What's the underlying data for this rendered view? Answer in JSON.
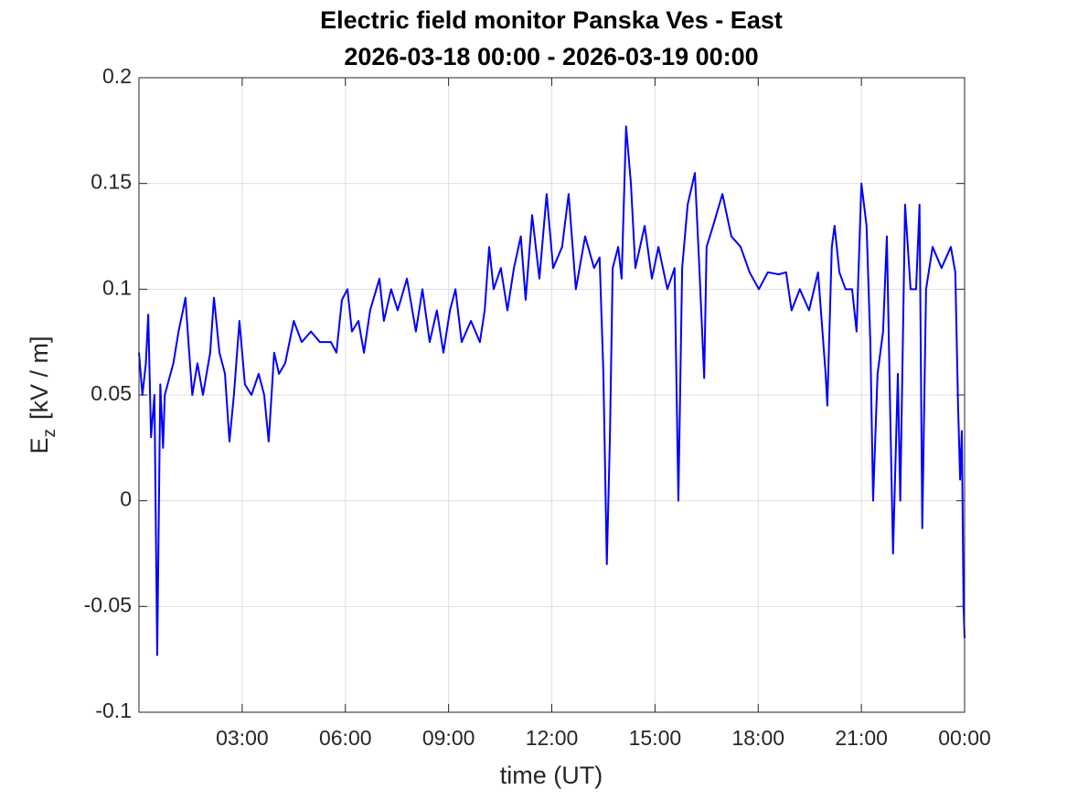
{
  "chart_data": {
    "type": "line",
    "title": "Electric field monitor Panska Ves - East",
    "subtitle": "2026-03-18 00:00 - 2026-03-19 00:00",
    "xlabel": "time (UT)",
    "ylabel": {
      "main": "E",
      "sub": "z",
      "unit": "[kV / m]"
    },
    "xlim": [
      0,
      24
    ],
    "xticks": [
      {
        "value": 3,
        "label": "03:00"
      },
      {
        "value": 6,
        "label": "06:00"
      },
      {
        "value": 9,
        "label": "09:00"
      },
      {
        "value": 12,
        "label": "12:00"
      },
      {
        "value": 15,
        "label": "15:00"
      },
      {
        "value": 18,
        "label": "18:00"
      },
      {
        "value": 21,
        "label": "21:00"
      },
      {
        "value": 24,
        "label": "00:00"
      }
    ],
    "ylim": [
      -0.1,
      0.2
    ],
    "yticks": [
      -0.1,
      -0.05,
      0,
      0.05,
      0.1,
      0.15,
      0.2
    ],
    "grid": true,
    "series": [
      {
        "name": "Ez",
        "color": "#0000ff",
        "x": [
          0.0,
          0.1,
          0.2,
          0.27,
          0.35,
          0.45,
          0.53,
          0.62,
          0.7,
          0.75,
          1.0,
          1.15,
          1.28,
          1.35,
          1.46,
          1.55,
          1.7,
          1.86,
          2.07,
          2.18,
          2.34,
          2.5,
          2.63,
          2.76,
          2.92,
          3.08,
          3.27,
          3.48,
          3.64,
          3.77,
          3.93,
          4.07,
          4.25,
          4.5,
          4.73,
          5.0,
          5.26,
          5.58,
          5.74,
          5.9,
          6.06,
          6.19,
          6.38,
          6.54,
          6.72,
          6.99,
          7.12,
          7.33,
          7.52,
          7.79,
          8.05,
          8.24,
          8.45,
          8.66,
          8.85,
          9.04,
          9.2,
          9.38,
          9.65,
          9.91,
          10.05,
          10.18,
          10.31,
          10.52,
          10.71,
          10.9,
          11.1,
          11.24,
          11.43,
          11.64,
          11.85,
          12.04,
          12.3,
          12.49,
          12.7,
          12.97,
          13.23,
          13.39,
          13.5,
          13.6,
          13.69,
          13.77,
          13.93,
          14.03,
          14.16,
          14.3,
          14.43,
          14.7,
          14.91,
          15.1,
          15.36,
          15.57,
          15.68,
          15.79,
          15.95,
          16.16,
          16.29,
          16.43,
          16.5,
          16.69,
          16.96,
          17.22,
          17.49,
          17.75,
          18.02,
          18.28,
          18.6,
          18.81,
          18.97,
          19.21,
          19.48,
          19.74,
          19.96,
          20.01,
          20.14,
          20.22,
          20.36,
          20.54,
          20.73,
          20.86,
          21.0,
          21.15,
          21.26,
          21.34,
          21.47,
          21.63,
          21.74,
          21.84,
          21.92,
          22.06,
          22.13,
          22.27,
          22.43,
          22.59,
          22.69,
          22.77,
          22.88,
          23.07,
          23.33,
          23.6,
          23.73,
          23.81,
          23.87,
          23.92,
          23.97,
          24.0
        ],
        "values": [
          0.07,
          0.05,
          0.065,
          0.088,
          0.03,
          0.05,
          -0.073,
          0.055,
          0.025,
          0.05,
          0.065,
          0.08,
          0.09,
          0.096,
          0.07,
          0.05,
          0.065,
          0.05,
          0.07,
          0.096,
          0.07,
          0.06,
          0.028,
          0.05,
          0.085,
          0.055,
          0.05,
          0.06,
          0.05,
          0.028,
          0.07,
          0.06,
          0.065,
          0.085,
          0.075,
          0.08,
          0.075,
          0.075,
          0.07,
          0.095,
          0.1,
          0.08,
          0.085,
          0.07,
          0.09,
          0.105,
          0.085,
          0.1,
          0.09,
          0.105,
          0.08,
          0.1,
          0.075,
          0.09,
          0.07,
          0.09,
          0.1,
          0.075,
          0.085,
          0.075,
          0.09,
          0.12,
          0.1,
          0.11,
          0.09,
          0.11,
          0.125,
          0.095,
          0.135,
          0.105,
          0.145,
          0.11,
          0.12,
          0.145,
          0.1,
          0.125,
          0.11,
          0.115,
          0.06,
          -0.03,
          0.03,
          0.11,
          0.12,
          0.105,
          0.177,
          0.15,
          0.11,
          0.13,
          0.105,
          0.12,
          0.1,
          0.11,
          0.0,
          0.11,
          0.14,
          0.155,
          0.11,
          0.058,
          0.12,
          0.13,
          0.145,
          0.125,
          0.12,
          0.108,
          0.1,
          0.108,
          0.107,
          0.108,
          0.09,
          0.1,
          0.09,
          0.108,
          0.06,
          0.045,
          0.12,
          0.13,
          0.108,
          0.1,
          0.1,
          0.08,
          0.15,
          0.13,
          0.075,
          0.0,
          0.06,
          0.08,
          0.125,
          0.04,
          -0.025,
          0.06,
          0.0,
          0.14,
          0.1,
          0.1,
          0.14,
          -0.013,
          0.1,
          0.12,
          0.11,
          0.12,
          0.108,
          0.045,
          0.01,
          0.033,
          -0.05,
          -0.065
        ]
      }
    ]
  }
}
